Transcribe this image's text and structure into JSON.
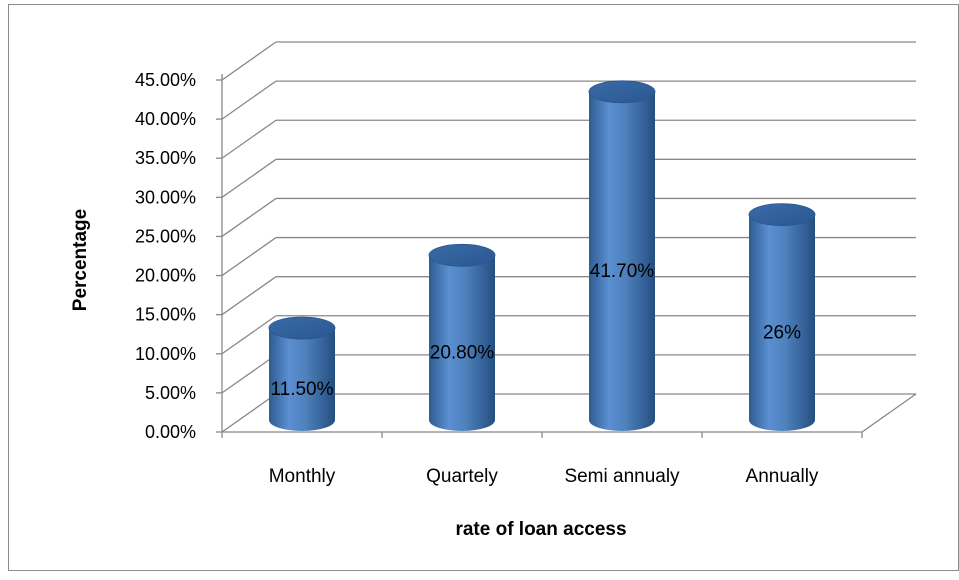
{
  "chart_data": {
    "type": "bar",
    "style": "3d-cylinder",
    "title": "",
    "xlabel": "rate of loan access",
    "ylabel": "Percentage",
    "categories": [
      "Monthly",
      "Quartely",
      "Semi annualy",
      "Annually"
    ],
    "values": [
      11.5,
      20.8,
      41.7,
      26
    ],
    "data_labels": [
      "11.50%",
      "20.80%",
      "41.70%",
      "26%"
    ],
    "ylim": [
      0,
      45
    ],
    "y_ticks": [
      0,
      5,
      10,
      15,
      20,
      25,
      30,
      35,
      40,
      45
    ],
    "y_tick_labels": [
      "0.00%",
      "5.00%",
      "10.00%",
      "15.00%",
      "20.00%",
      "25.00%",
      "30.00%",
      "35.00%",
      "40.00%",
      "45.00%"
    ],
    "grid": true,
    "legend": "none",
    "colors": {
      "bar": "#4F81BD",
      "bar_dark": "#2E5C92",
      "bar_light": "#7FA7D8",
      "grid": "#888888",
      "text": "#000000"
    }
  }
}
